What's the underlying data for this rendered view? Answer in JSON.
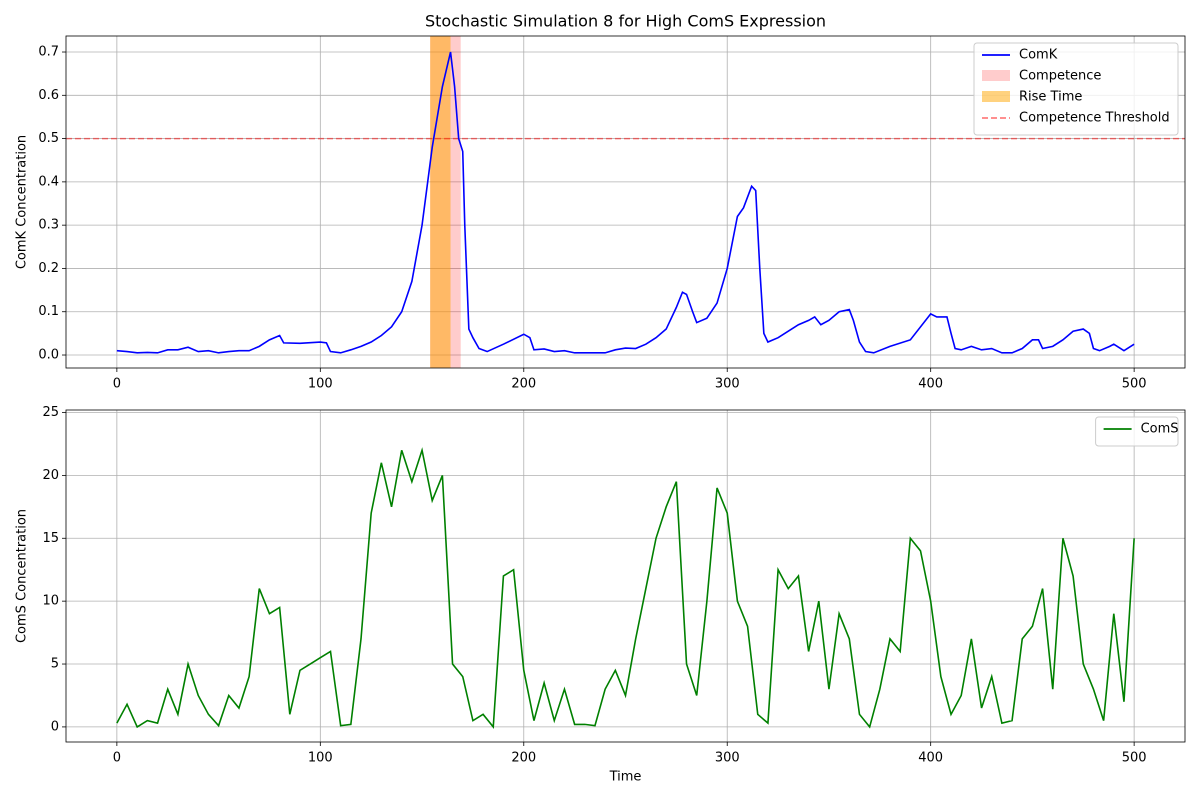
{
  "chart_data": [
    {
      "type": "line",
      "title": "Stochastic Simulation 8 for High ComS Expression",
      "ylabel": "ComK Concentration",
      "x": [
        0,
        5,
        10,
        15,
        20,
        25,
        30,
        35,
        40,
        45,
        50,
        55,
        60,
        65,
        70,
        75,
        80,
        82,
        90,
        100,
        103,
        105,
        110,
        115,
        120,
        125,
        130,
        135,
        140,
        145,
        150,
        155,
        160,
        164,
        166,
        168,
        170,
        171,
        173,
        175,
        178,
        182,
        190,
        200,
        203,
        205,
        210,
        215,
        220,
        225,
        230,
        240,
        245,
        250,
        255,
        260,
        265,
        270,
        275,
        278,
        280,
        283,
        285,
        290,
        295,
        300,
        305,
        308,
        312,
        314,
        316,
        318,
        320,
        325,
        330,
        335,
        340,
        343,
        346,
        350,
        355,
        360,
        362,
        365,
        368,
        372,
        380,
        390,
        400,
        403,
        408,
        410,
        412,
        415,
        420,
        425,
        430,
        435,
        440,
        445,
        450,
        453,
        455,
        460,
        465,
        470,
        475,
        478,
        480,
        483,
        488,
        490,
        495,
        500
      ],
      "series": [
        {
          "name": "ComK",
          "color": "#0000ff",
          "values": [
            0.01,
            0.008,
            0.005,
            0.006,
            0.005,
            0.012,
            0.012,
            0.018,
            0.008,
            0.01,
            0.005,
            0.008,
            0.01,
            0.01,
            0.02,
            0.035,
            0.045,
            0.028,
            0.027,
            0.03,
            0.028,
            0.008,
            0.005,
            0.012,
            0.02,
            0.03,
            0.045,
            0.065,
            0.1,
            0.17,
            0.3,
            0.48,
            0.62,
            0.7,
            0.62,
            0.5,
            0.47,
            0.3,
            0.06,
            0.04,
            0.015,
            0.008,
            0.025,
            0.048,
            0.04,
            0.012,
            0.014,
            0.008,
            0.01,
            0.005,
            0.005,
            0.005,
            0.012,
            0.016,
            0.015,
            0.025,
            0.04,
            0.06,
            0.11,
            0.145,
            0.14,
            0.1,
            0.075,
            0.085,
            0.12,
            0.2,
            0.32,
            0.34,
            0.39,
            0.38,
            0.2,
            0.05,
            0.03,
            0.04,
            0.055,
            0.07,
            0.08,
            0.088,
            0.07,
            0.08,
            0.1,
            0.105,
            0.08,
            0.03,
            0.008,
            0.005,
            0.02,
            0.035,
            0.095,
            0.088,
            0.088,
            0.05,
            0.015,
            0.012,
            0.02,
            0.012,
            0.015,
            0.005,
            0.005,
            0.015,
            0.035,
            0.035,
            0.015,
            0.02,
            0.035,
            0.055,
            0.06,
            0.05,
            0.015,
            0.01,
            0.02,
            0.025,
            0.01,
            0.025
          ]
        }
      ],
      "spans": [
        {
          "name": "Competence",
          "color": "rgba(255,0,0,0.2)",
          "range": [
            154,
            169
          ]
        },
        {
          "name": "Rise Time",
          "color": "rgba(255,165,0,0.5)",
          "range": [
            154,
            164
          ]
        }
      ],
      "hlines": [
        {
          "name": "Competence Threshold",
          "color": "rgba(255,0,0,0.5)",
          "value": 0.5
        }
      ],
      "xlim": [
        -25,
        525
      ],
      "ylim": [
        -0.03,
        0.737
      ],
      "xticks": [
        0,
        100,
        200,
        300,
        400,
        500
      ],
      "yticks": [
        {
          "value": 0,
          "label": "0.0"
        },
        0.1,
        0.2,
        0.3,
        0.4,
        0.5,
        0.6,
        0.7
      ],
      "grid": true,
      "legend": "upper right"
    },
    {
      "type": "line",
      "xlabel": "Time",
      "ylabel": "ComS Concentration",
      "x": [
        0,
        5,
        10,
        15,
        20,
        25,
        30,
        35,
        40,
        45,
        50,
        55,
        60,
        65,
        70,
        75,
        80,
        85,
        90,
        95,
        100,
        105,
        110,
        115,
        120,
        125,
        130,
        135,
        140,
        145,
        150,
        155,
        160,
        165,
        170,
        175,
        180,
        185,
        190,
        195,
        200,
        205,
        210,
        215,
        220,
        225,
        230,
        235,
        240,
        245,
        250,
        255,
        260,
        265,
        270,
        275,
        280,
        285,
        290,
        295,
        300,
        305,
        310,
        315,
        320,
        325,
        330,
        335,
        340,
        345,
        350,
        355,
        360,
        365,
        370,
        375,
        380,
        385,
        390,
        395,
        400,
        405,
        410,
        415,
        420,
        425,
        430,
        435,
        440,
        445,
        450,
        455,
        460,
        465,
        470,
        475,
        480,
        485,
        490,
        495,
        500
      ],
      "series": [
        {
          "name": "ComS",
          "color": "#008000",
          "values": [
            0.3,
            1.8,
            0,
            0.5,
            0.3,
            3,
            1,
            5,
            2.5,
            1,
            0.1,
            2.5,
            1.5,
            4,
            11,
            9,
            9.5,
            1,
            4.5,
            5,
            5.5,
            6,
            0.1,
            0.2,
            7,
            17,
            21,
            17.5,
            22,
            19.5,
            22,
            18,
            20,
            5,
            4,
            0.5,
            1,
            0,
            12,
            12.5,
            4.5,
            0.5,
            3.5,
            0.5,
            3,
            0.2,
            0.2,
            0.1,
            3,
            4.5,
            2.5,
            7,
            11,
            15,
            17.5,
            19.5,
            5,
            2.5,
            10,
            19,
            17,
            10,
            8,
            1,
            0.3,
            12.5,
            11,
            12,
            6,
            10,
            3,
            9,
            7,
            1,
            0,
            3,
            7,
            6,
            15,
            14,
            10,
            4,
            1,
            2.5,
            7,
            1.5,
            4,
            0.3,
            0.5,
            7,
            8,
            11,
            3,
            15,
            12,
            5,
            3,
            0.5,
            9,
            2,
            15
          ]
        }
      ],
      "xlim": [
        -25,
        525
      ],
      "ylim": [
        -1.2,
        25.2
      ],
      "xticks": [
        0,
        100,
        200,
        300,
        400,
        500
      ],
      "yticks": [
        0,
        5,
        10,
        15,
        20,
        25
      ],
      "grid": true,
      "legend": "upper right"
    }
  ]
}
